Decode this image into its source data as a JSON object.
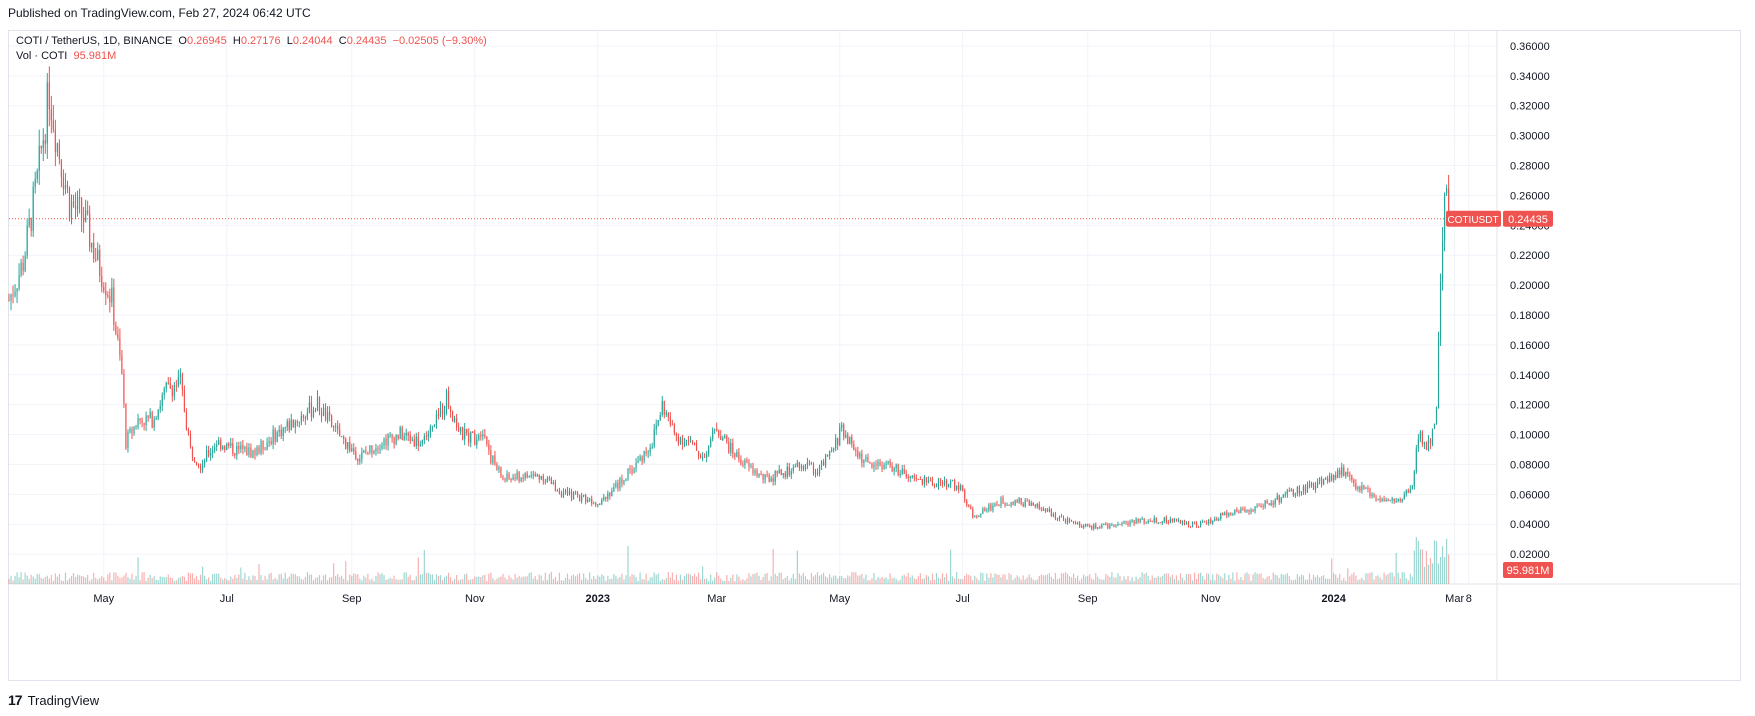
{
  "header": {
    "published": "Published on TradingView.com, Feb 27, 2024 06:42 UTC"
  },
  "legend": {
    "symbol": "COTI / TetherUS, 1D, BINANCE",
    "open_label": "O",
    "open": "0.26945",
    "high_label": "H",
    "high": "0.27176",
    "low_label": "L",
    "low": "0.24044",
    "close_label": "C",
    "close": "0.24435",
    "change": "−0.02505 (−9.30%)",
    "vol_label": "Vol · COTI",
    "vol_value": "95.981M"
  },
  "footer": {
    "logo_mark": "17",
    "brand": "TradingView"
  },
  "colors": {
    "up": "#26a69a",
    "down": "#ef5350",
    "price_line": "#ef5350",
    "grid": "#f0f3fa"
  },
  "chart_data": {
    "type": "candlestick",
    "symbol_tag": "COTIUSDT",
    "last_price": 0.24435,
    "last_price_label": "0.24435",
    "volume_label": "95.981M",
    "y_range": [
      0.0,
      0.37
    ],
    "y_ticks": [
      "0.36000",
      "0.34000",
      "0.32000",
      "0.30000",
      "0.28000",
      "0.26000",
      "0.24000",
      "0.22000",
      "0.20000",
      "0.18000",
      "0.16000",
      "0.14000",
      "0.12000",
      "0.10000",
      "0.08000",
      "0.06000",
      "0.04000",
      "0.02000"
    ],
    "y_tick_values": [
      0.36,
      0.34,
      0.32,
      0.3,
      0.28,
      0.26,
      0.24,
      0.22,
      0.2,
      0.18,
      0.16,
      0.14,
      0.12,
      0.1,
      0.08,
      0.06,
      0.04,
      0.02
    ],
    "x_range": [
      "2022-03-15",
      "2024-03-22"
    ],
    "x_ticks": [
      {
        "label": "May",
        "date": "2022-05-01"
      },
      {
        "label": "Jul",
        "date": "2022-07-01"
      },
      {
        "label": "Sep",
        "date": "2022-09-01"
      },
      {
        "label": "Nov",
        "date": "2022-11-01"
      },
      {
        "label": "2023",
        "date": "2023-01-01"
      },
      {
        "label": "Mar",
        "date": "2023-03-01"
      },
      {
        "label": "May",
        "date": "2023-05-01"
      },
      {
        "label": "Jul",
        "date": "2023-07-01"
      },
      {
        "label": "Sep",
        "date": "2023-09-01"
      },
      {
        "label": "Nov",
        "date": "2023-11-01"
      },
      {
        "label": "2024",
        "date": "2024-01-01"
      },
      {
        "label": "Mar",
        "date": "2024-03-01"
      },
      {
        "label": "8",
        "date": "2024-03-08"
      }
    ],
    "close_series": [
      {
        "date": "2022-03-15",
        "close": 0.19
      },
      {
        "date": "2022-03-22",
        "close": 0.215
      },
      {
        "date": "2022-03-29",
        "close": 0.27
      },
      {
        "date": "2022-04-04",
        "close": 0.33
      },
      {
        "date": "2022-04-08",
        "close": 0.295
      },
      {
        "date": "2022-04-14",
        "close": 0.255
      },
      {
        "date": "2022-04-21",
        "close": 0.245
      },
      {
        "date": "2022-04-28",
        "close": 0.215
      },
      {
        "date": "2022-05-05",
        "close": 0.19
      },
      {
        "date": "2022-05-10",
        "close": 0.14
      },
      {
        "date": "2022-05-12",
        "close": 0.095
      },
      {
        "date": "2022-05-18",
        "close": 0.11
      },
      {
        "date": "2022-05-25",
        "close": 0.11
      },
      {
        "date": "2022-06-01",
        "close": 0.13
      },
      {
        "date": "2022-06-08",
        "close": 0.135
      },
      {
        "date": "2022-06-13",
        "close": 0.09
      },
      {
        "date": "2022-06-18",
        "close": 0.08
      },
      {
        "date": "2022-06-26",
        "close": 0.095
      },
      {
        "date": "2022-07-05",
        "close": 0.09
      },
      {
        "date": "2022-07-15",
        "close": 0.088
      },
      {
        "date": "2022-07-25",
        "close": 0.1
      },
      {
        "date": "2022-08-05",
        "close": 0.11
      },
      {
        "date": "2022-08-15",
        "close": 0.12
      },
      {
        "date": "2022-08-25",
        "close": 0.1
      },
      {
        "date": "2022-09-05",
        "close": 0.085
      },
      {
        "date": "2022-09-15",
        "close": 0.095
      },
      {
        "date": "2022-09-25",
        "close": 0.1
      },
      {
        "date": "2022-10-05",
        "close": 0.095
      },
      {
        "date": "2022-10-12",
        "close": 0.105
      },
      {
        "date": "2022-10-18",
        "close": 0.125
      },
      {
        "date": "2022-10-25",
        "close": 0.1
      },
      {
        "date": "2022-11-01",
        "close": 0.098
      },
      {
        "date": "2022-11-05",
        "close": 0.105
      },
      {
        "date": "2022-11-09",
        "close": 0.085
      },
      {
        "date": "2022-11-15",
        "close": 0.07
      },
      {
        "date": "2022-11-25",
        "close": 0.072
      },
      {
        "date": "2022-12-05",
        "close": 0.072
      },
      {
        "date": "2022-12-15",
        "close": 0.06
      },
      {
        "date": "2022-12-25",
        "close": 0.058
      },
      {
        "date": "2023-01-01",
        "close": 0.055
      },
      {
        "date": "2023-01-10",
        "close": 0.065
      },
      {
        "date": "2023-01-20",
        "close": 0.08
      },
      {
        "date": "2023-01-28",
        "close": 0.095
      },
      {
        "date": "2023-02-02",
        "close": 0.12
      },
      {
        "date": "2023-02-08",
        "close": 0.1
      },
      {
        "date": "2023-02-15",
        "close": 0.095
      },
      {
        "date": "2023-02-22",
        "close": 0.085
      },
      {
        "date": "2023-03-01",
        "close": 0.105
      },
      {
        "date": "2023-03-08",
        "close": 0.09
      },
      {
        "date": "2023-03-15",
        "close": 0.08
      },
      {
        "date": "2023-03-25",
        "close": 0.07
      },
      {
        "date": "2023-04-05",
        "close": 0.075
      },
      {
        "date": "2023-04-15",
        "close": 0.08
      },
      {
        "date": "2023-04-20",
        "close": 0.075
      },
      {
        "date": "2023-04-28",
        "close": 0.09
      },
      {
        "date": "2023-05-02",
        "close": 0.105
      },
      {
        "date": "2023-05-08",
        "close": 0.09
      },
      {
        "date": "2023-05-15",
        "close": 0.08
      },
      {
        "date": "2023-05-25",
        "close": 0.08
      },
      {
        "date": "2023-06-05",
        "close": 0.07
      },
      {
        "date": "2023-06-15",
        "close": 0.068
      },
      {
        "date": "2023-06-25",
        "close": 0.068
      },
      {
        "date": "2023-07-01",
        "close": 0.062
      },
      {
        "date": "2023-07-06",
        "close": 0.045
      },
      {
        "date": "2023-07-12",
        "close": 0.05
      },
      {
        "date": "2023-07-20",
        "close": 0.055
      },
      {
        "date": "2023-07-30",
        "close": 0.055
      },
      {
        "date": "2023-08-10",
        "close": 0.05
      },
      {
        "date": "2023-08-17",
        "close": 0.045
      },
      {
        "date": "2023-08-25",
        "close": 0.04
      },
      {
        "date": "2023-09-05",
        "close": 0.038
      },
      {
        "date": "2023-09-15",
        "close": 0.04
      },
      {
        "date": "2023-09-25",
        "close": 0.042
      },
      {
        "date": "2023-10-05",
        "close": 0.043
      },
      {
        "date": "2023-10-15",
        "close": 0.042
      },
      {
        "date": "2023-10-25",
        "close": 0.04
      },
      {
        "date": "2023-11-01",
        "close": 0.042
      },
      {
        "date": "2023-11-10",
        "close": 0.048
      },
      {
        "date": "2023-11-20",
        "close": 0.05
      },
      {
        "date": "2023-12-01",
        "close": 0.055
      },
      {
        "date": "2023-12-10",
        "close": 0.06
      },
      {
        "date": "2023-12-20",
        "close": 0.065
      },
      {
        "date": "2023-12-28",
        "close": 0.07
      },
      {
        "date": "2024-01-05",
        "close": 0.075
      },
      {
        "date": "2024-01-12",
        "close": 0.065
      },
      {
        "date": "2024-01-20",
        "close": 0.06
      },
      {
        "date": "2024-01-28",
        "close": 0.055
      },
      {
        "date": "2024-02-05",
        "close": 0.058
      },
      {
        "date": "2024-02-09",
        "close": 0.065
      },
      {
        "date": "2024-02-12",
        "close": 0.1
      },
      {
        "date": "2024-02-16",
        "close": 0.09
      },
      {
        "date": "2024-02-19",
        "close": 0.1
      },
      {
        "date": "2024-02-21",
        "close": 0.12
      },
      {
        "date": "2024-02-23",
        "close": 0.2
      },
      {
        "date": "2024-02-25",
        "close": 0.265
      },
      {
        "date": "2024-02-27",
        "close": 0.24435
      }
    ],
    "volume_note_max": 95.981
  }
}
